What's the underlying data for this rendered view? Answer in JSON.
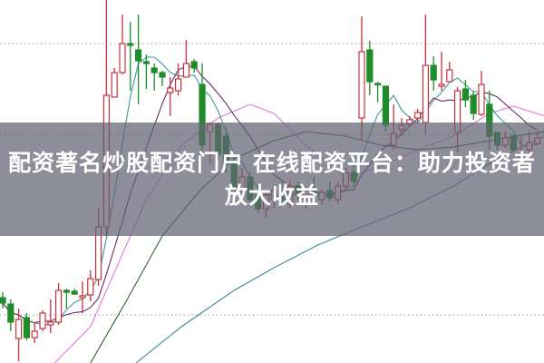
{
  "overlay": {
    "title": "配资著名炒股配资门户 在线配资平台：助力投资者放大收益"
  },
  "chart_data": {
    "type": "candlestick",
    "title": "",
    "xlabel": "",
    "ylabel": "",
    "ylim": [
      0,
      40
    ],
    "grid": "dotted horizontal",
    "colors": {
      "up": "#c8323c",
      "down": "#1e8c28",
      "grid": "#999999"
    },
    "candles_ohlc": [
      [
        7.2,
        7.8,
        6.0,
        6.6
      ],
      [
        6.5,
        7.0,
        3.5,
        4.5
      ],
      [
        2.7,
        6.0,
        0.2,
        4.8
      ],
      [
        5.0,
        5.5,
        2.5,
        2.8
      ],
      [
        2.8,
        4.5,
        2.2,
        3.5
      ],
      [
        3.8,
        5.8,
        3.5,
        5.5
      ],
      [
        4.2,
        7.0,
        3.3,
        4.5
      ],
      [
        4.5,
        8.8,
        4.2,
        8.0
      ],
      [
        8.0,
        8.2,
        6.0,
        7.8
      ],
      [
        7.9,
        8.2,
        7.5,
        7.6
      ],
      [
        7.2,
        9.0,
        5.5,
        7.4
      ],
      [
        7.5,
        10.2,
        6.8,
        9.3
      ],
      [
        9.2,
        17.0,
        8.5,
        15.0
      ],
      [
        15.0,
        40.0,
        14.0,
        29.5
      ],
      [
        29.3,
        32.5,
        29.3,
        32.0
      ],
      [
        32.0,
        38.4,
        31.8,
        35.2
      ],
      [
        35.2,
        37.6,
        30.0,
        35.0
      ],
      [
        34.5,
        38.4,
        28.5,
        33.3
      ],
      [
        33.2,
        34.0,
        30.2,
        33.0
      ],
      [
        32.5,
        33.0,
        30.0,
        32.0
      ],
      [
        32.0,
        32.2,
        30.5,
        31.5
      ],
      [
        29.8,
        31.5,
        27.2,
        30.3
      ],
      [
        30.0,
        33.0,
        29.5,
        31.3
      ],
      [
        31.5,
        35.6,
        31.5,
        33.0
      ],
      [
        33.2,
        33.5,
        32.0,
        32.5
      ],
      [
        30.7,
        33.0,
        23.0,
        24.0
      ],
      [
        25.5,
        26.5,
        22.0,
        26.3
      ],
      [
        26.3,
        26.5,
        22.5,
        23.0
      ],
      [
        25.0,
        26.0,
        21.0,
        22.0
      ],
      [
        22.0,
        23.0,
        18.0,
        19.0
      ],
      [
        19.0,
        21.5,
        18.5,
        20.5
      ],
      [
        20.5,
        21.0,
        17.5,
        18.0
      ],
      [
        18.5,
        19.5,
        16.5,
        17.0
      ],
      [
        17.0,
        19.0,
        16.0,
        18.5
      ],
      [
        18.0,
        19.5,
        17.0,
        19.0
      ],
      [
        19.0,
        20.0,
        17.5,
        18.0
      ],
      [
        17.5,
        20.0,
        17.0,
        19.5
      ],
      [
        19.5,
        20.0,
        18.0,
        18.5
      ],
      [
        18.0,
        19.5,
        17.0,
        19.0
      ],
      [
        19.0,
        20.5,
        18.0,
        18.5
      ],
      [
        18.0,
        19.2,
        17.5,
        18.8
      ],
      [
        19.0,
        20.0,
        17.8,
        18.2
      ],
      [
        18.0,
        20.0,
        17.5,
        19.5
      ],
      [
        19.5,
        21.5,
        19.0,
        21.0
      ],
      [
        21.0,
        22.0,
        19.5,
        20.0
      ],
      [
        27.0,
        38.2,
        24.5,
        34.3
      ],
      [
        34.5,
        35.5,
        29.5,
        31.0
      ],
      [
        30.8,
        31.0,
        28.7,
        30.7
      ],
      [
        30.5,
        30.5,
        25.5,
        26.2
      ],
      [
        24.0,
        28.5,
        23.5,
        25.3
      ],
      [
        25.7,
        27.0,
        25.0,
        26.2
      ],
      [
        26.3,
        27.2,
        26.0,
        26.8
      ],
      [
        27.0,
        28.0,
        26.5,
        27.6
      ],
      [
        26.5,
        38.4,
        25.2,
        32.8
      ],
      [
        32.8,
        33.8,
        30.0,
        31.2
      ],
      [
        30.5,
        34.3,
        30.0,
        30.7
      ],
      [
        31.0,
        33.2,
        31.0,
        32.3
      ],
      [
        25.4,
        30.4,
        23.2,
        30.0
      ],
      [
        30.2,
        31.2,
        28.2,
        29.0
      ],
      [
        29.5,
        30.0,
        26.8,
        27.5
      ],
      [
        27.4,
        32.2,
        27.2,
        30.7
      ],
      [
        28.5,
        30.0,
        23.5,
        25.0
      ],
      [
        25.4,
        25.5,
        23.5,
        24.0
      ],
      [
        24.0,
        25.5,
        23.7,
        24.8
      ],
      [
        25.0,
        25.2,
        23.2,
        23.5
      ],
      [
        22.0,
        25.0,
        21.7,
        23.0
      ],
      [
        23.5,
        25.5,
        23.2,
        24.3
      ],
      [
        24.2,
        25.5,
        24.0,
        24.8
      ]
    ],
    "gridlines": [
      5.3,
      25.2,
      35.2
    ],
    "moving_averages": [
      {
        "period": 5,
        "color": "#3a9aa0"
      },
      {
        "period": 10,
        "color": "#6a2a6a"
      }
    ],
    "trend_lines": [
      {
        "color": "#e07ae0",
        "points": [
          [
            6.5,
            0
          ],
          [
            11,
            4
          ],
          [
            14.5,
            11
          ],
          [
            18,
            18
          ],
          [
            22.4,
            24
          ],
          [
            27,
            27
          ],
          [
            31,
            28.5
          ],
          [
            34,
            27.5
          ],
          [
            38,
            24
          ],
          [
            43,
            20.5
          ],
          [
            47,
            21.5
          ],
          [
            52,
            23.5
          ],
          [
            56.5,
            25
          ],
          [
            61,
            27.5
          ],
          [
            64,
            28.3
          ],
          [
            68,
            27.2
          ]
        ]
      },
      {
        "color": "#2f5f2f",
        "points": [
          [
            11,
            0
          ],
          [
            15.6,
            7
          ],
          [
            20,
            14
          ],
          [
            24.7,
            19
          ],
          [
            29,
            22.5
          ],
          [
            34,
            24.5
          ],
          [
            38,
            25.5
          ],
          [
            43,
            25
          ],
          [
            47.4,
            24
          ],
          [
            52,
            23.5
          ],
          [
            56.5,
            23.8
          ],
          [
            61,
            24.5
          ],
          [
            65.6,
            25.2
          ],
          [
            68,
            25.5
          ]
        ]
      },
      {
        "color": "#3a8a9a",
        "points": [
          [
            16.7,
            0
          ],
          [
            22.4,
            4
          ],
          [
            29,
            8
          ],
          [
            34,
            10.5
          ],
          [
            39.5,
            13
          ],
          [
            45,
            15
          ],
          [
            50.8,
            17
          ],
          [
            56.5,
            19.5
          ],
          [
            62,
            22.5
          ],
          [
            68,
            25
          ]
        ]
      }
    ]
  }
}
